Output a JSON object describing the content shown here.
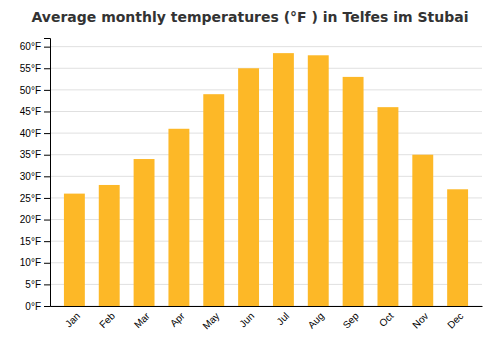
{
  "chart_data": {
    "type": "bar",
    "title": "Average monthly temperatures (°F ) in Telfes im Stubai",
    "categories": [
      "Jan",
      "Feb",
      "Mar",
      "Apr",
      "May",
      "Jun",
      "Jul",
      "Aug",
      "Sep",
      "Oct",
      "Nov",
      "Dec"
    ],
    "values": [
      26,
      28,
      34,
      41,
      49,
      55,
      58.5,
      58,
      53,
      46,
      35,
      27
    ],
    "color": "#FDB827",
    "ylim": [
      0,
      62
    ],
    "yticks": [
      {
        "value": 0,
        "label": "0°F"
      },
      {
        "value": 5,
        "label": "5°F"
      },
      {
        "value": 10,
        "label": "10°F"
      },
      {
        "value": 15,
        "label": "15°F"
      },
      {
        "value": 20,
        "label": "20°F"
      },
      {
        "value": 25,
        "label": "25°F"
      },
      {
        "value": 30,
        "label": "30°F"
      },
      {
        "value": 35,
        "label": "35°F"
      },
      {
        "value": 40,
        "label": "40°F"
      },
      {
        "value": 45,
        "label": "45°F"
      },
      {
        "value": 50,
        "label": "50°F"
      },
      {
        "value": 55,
        "label": "55°F"
      },
      {
        "value": 60,
        "label": "60°F"
      }
    ],
    "grid": true
  }
}
